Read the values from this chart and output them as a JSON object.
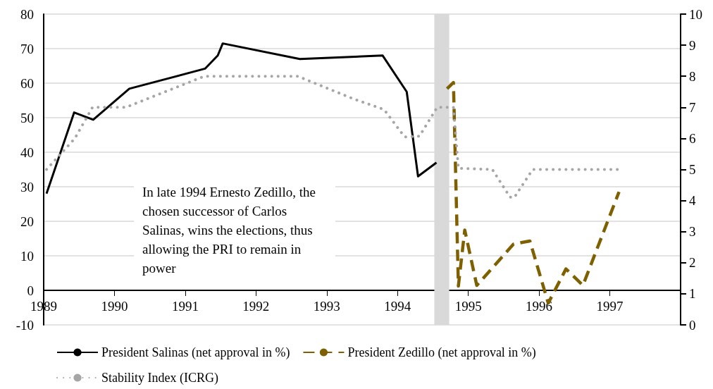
{
  "chart_data": {
    "type": "line",
    "xlim": [
      1989,
      1998
    ],
    "xticks": [
      1989,
      1990,
      1991,
      1992,
      1993,
      1994,
      1995,
      1996,
      1997
    ],
    "ylim": [
      -10,
      80
    ],
    "yticks": [
      -10,
      0,
      10,
      20,
      30,
      40,
      50,
      60,
      70,
      80
    ],
    "y2lim": [
      0,
      10
    ],
    "y2ticks": [
      0,
      1,
      2,
      3,
      4,
      5,
      6,
      7,
      8,
      9,
      10
    ],
    "grid": "y",
    "legend": "bottom",
    "marker": "none",
    "bands": [
      {
        "axis": "x",
        "from": 1994.52,
        "to": 1994.73,
        "color": "#d9d9d9"
      }
    ],
    "annotations": [
      "In late 1994 Ernesto Zedillo, the chosen successor of Carlos Salinas, wins the elections, thus allowing the PRI to remain in power"
    ],
    "series": [
      {
        "name": "President Salinas (net approval in %)",
        "color": "#000000",
        "line_style": "solid",
        "x": [
          1989.04,
          1989.43,
          1989.7,
          1990.21,
          1991.28,
          1991.46,
          1991.53,
          1992.62,
          1993.79,
          1994.13,
          1994.29,
          1994.55
        ],
        "values": [
          28,
          51.5,
          49.4,
          58.4,
          64.2,
          68,
          71.5,
          67,
          68,
          57.5,
          33,
          37
        ]
      },
      {
        "name": "President Zedillo (net approval in %)",
        "color": "#7f6000",
        "line_style": "dashed",
        "axis": "y2",
        "x": [
          1994.7,
          1994.79,
          1994.86,
          1994.95,
          1995.12,
          1995.64,
          1995.87,
          1996.13,
          1996.38,
          1996.62,
          1997.13
        ],
        "values": [
          7.6,
          7.8,
          1.25,
          3.05,
          1.27,
          2.6,
          2.7,
          0.7,
          1.8,
          1.27,
          4.28
        ]
      },
      {
        "name": "Stability Index (ICRG)",
        "color": "#a6a6a6",
        "line_style": "dotted",
        "axis": "y2",
        "x": [
          1989.04,
          1989.44,
          1989.69,
          1990.16,
          1991.27,
          1992.59,
          1993.38,
          1993.81,
          1994.1,
          1994.31,
          1994.56,
          1994.79,
          1994.86,
          1995.34,
          1995.59,
          1995.65,
          1995.91,
          1997.12
        ],
        "values": [
          5,
          6,
          7,
          7,
          8,
          8,
          7.27,
          6.93,
          6.05,
          6.07,
          7,
          7,
          5.04,
          5,
          4.11,
          4.1,
          5,
          5
        ]
      }
    ]
  }
}
